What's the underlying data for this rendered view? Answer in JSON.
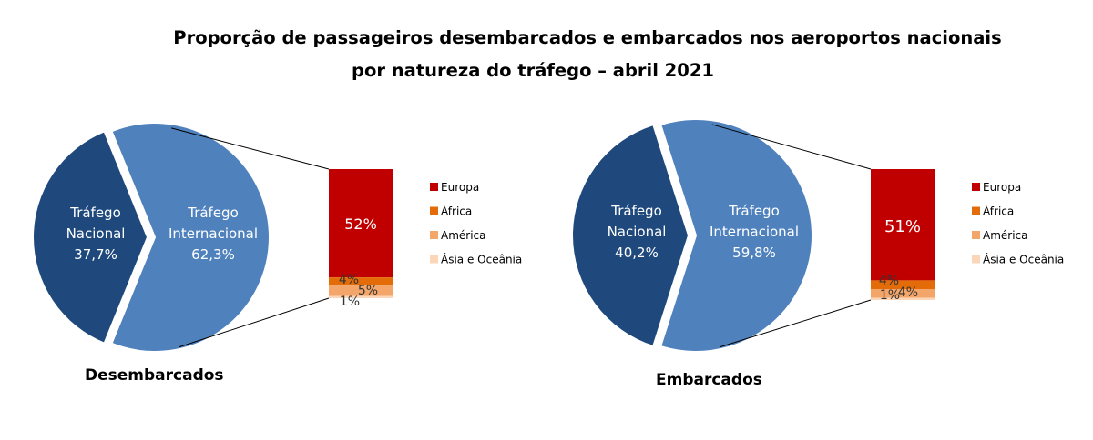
{
  "title_line1": "Proporção de passageiros desembarcados e embarcados nos aeroportos nacionais",
  "title_line2": "por natureza do tráfego – abril 2021",
  "colors": {
    "nacional": "#1f497d",
    "internacional": "#4f81bd",
    "europa": "#c00000",
    "africa": "#e36c09",
    "america": "#f4a66a",
    "asia": "#fbd6b8"
  },
  "chart_data": [
    {
      "type": "pie",
      "subtype": "bar-of-pie",
      "caption": "Desembarcados",
      "pie": [
        {
          "name": "Tráfego Nacional",
          "label_lines": [
            "Tráfego",
            "Nacional",
            "37,7%"
          ],
          "value": 37.7
        },
        {
          "name": "Tráfego Internacional",
          "label_lines": [
            "Tráfego",
            "Internacional",
            "62,3%"
          ],
          "value": 62.3
        }
      ],
      "breakdown": [
        {
          "name": "Europa",
          "value": 52,
          "label": "52%"
        },
        {
          "name": "África",
          "value": 4,
          "label": "4%"
        },
        {
          "name": "América",
          "value": 5,
          "label": "5%"
        },
        {
          "name": "Ásia e Oceânia",
          "value": 1,
          "label": "1%"
        }
      ],
      "legend": [
        "Europa",
        "África",
        "América",
        "Ásia e Oceânia"
      ],
      "legend_position": "right"
    },
    {
      "type": "pie",
      "subtype": "bar-of-pie",
      "caption": "Embarcados",
      "pie": [
        {
          "name": "Tráfego Nacional",
          "label_lines": [
            "Tráfego",
            "Nacional",
            "40,2%"
          ],
          "value": 40.2
        },
        {
          "name": "Tráfego Internacional",
          "label_lines": [
            "Tráfego",
            "Internacional",
            "59,8%"
          ],
          "value": 59.8
        }
      ],
      "breakdown": [
        {
          "name": "Europa",
          "value": 51,
          "label": "51%"
        },
        {
          "name": "África",
          "value": 4,
          "label": "4%"
        },
        {
          "name": "América",
          "value": 4,
          "label": "4%"
        },
        {
          "name": "Ásia e Oceânia",
          "value": 1,
          "label": "1%"
        }
      ],
      "legend": [
        "Europa",
        "África",
        "América",
        "Ásia e Oceânia"
      ],
      "legend_position": "right"
    }
  ]
}
